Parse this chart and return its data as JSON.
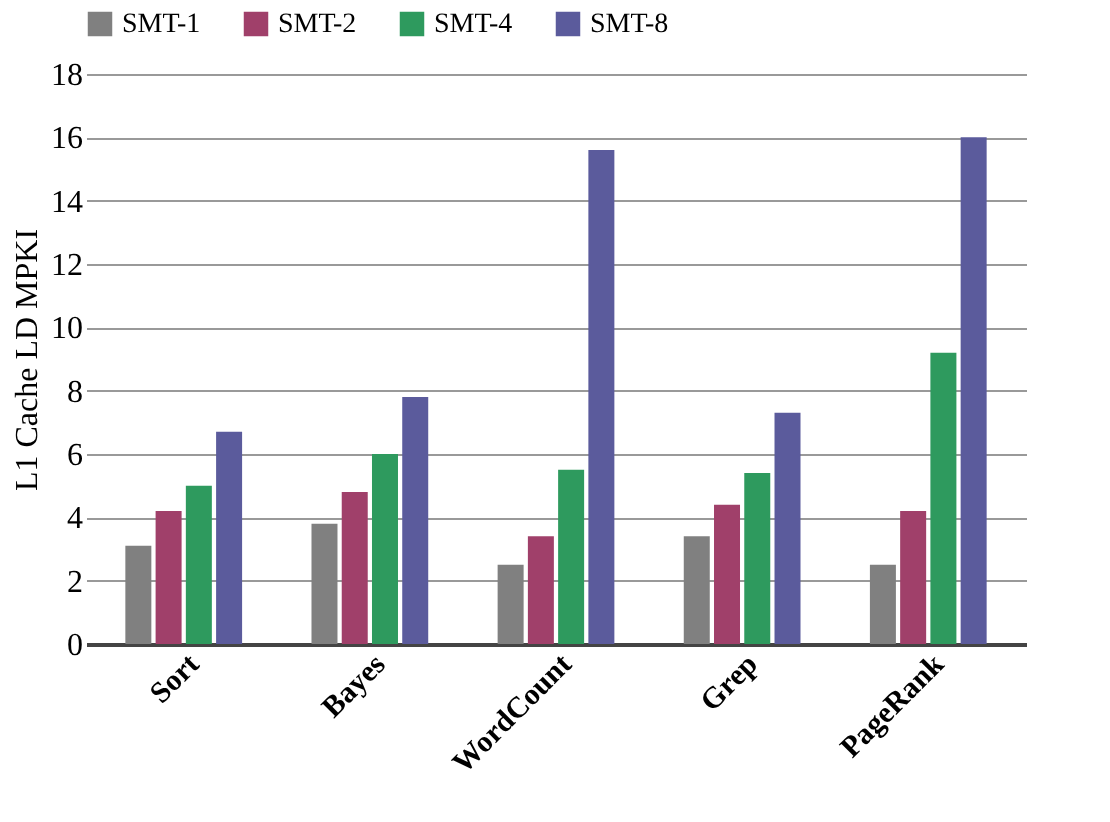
{
  "chart_data": {
    "type": "bar",
    "ylabel": "L1 Cache LD MPKI",
    "categories": [
      "Sort",
      "Bayes",
      "WordCount",
      "Grep",
      "PageRank"
    ],
    "series": [
      {
        "name": "SMT-1",
        "color": "#808080",
        "values": [
          3.1,
          3.8,
          2.5,
          3.4,
          2.5
        ]
      },
      {
        "name": "SMT-2",
        "color": "#a0406a",
        "values": [
          4.2,
          4.8,
          3.4,
          4.4,
          4.2
        ]
      },
      {
        "name": "SMT-4",
        "color": "#2e9a5e",
        "values": [
          5.0,
          6.0,
          5.5,
          5.4,
          9.2
        ]
      },
      {
        "name": "SMT-8",
        "color": "#5b5b9c",
        "values": [
          6.7,
          7.8,
          15.6,
          7.3,
          16.0
        ]
      }
    ],
    "ylim": [
      0,
      18
    ],
    "yticks": [
      0,
      2,
      4,
      6,
      8,
      10,
      12,
      14,
      16,
      18
    ],
    "grid": "y",
    "legend": "top"
  }
}
